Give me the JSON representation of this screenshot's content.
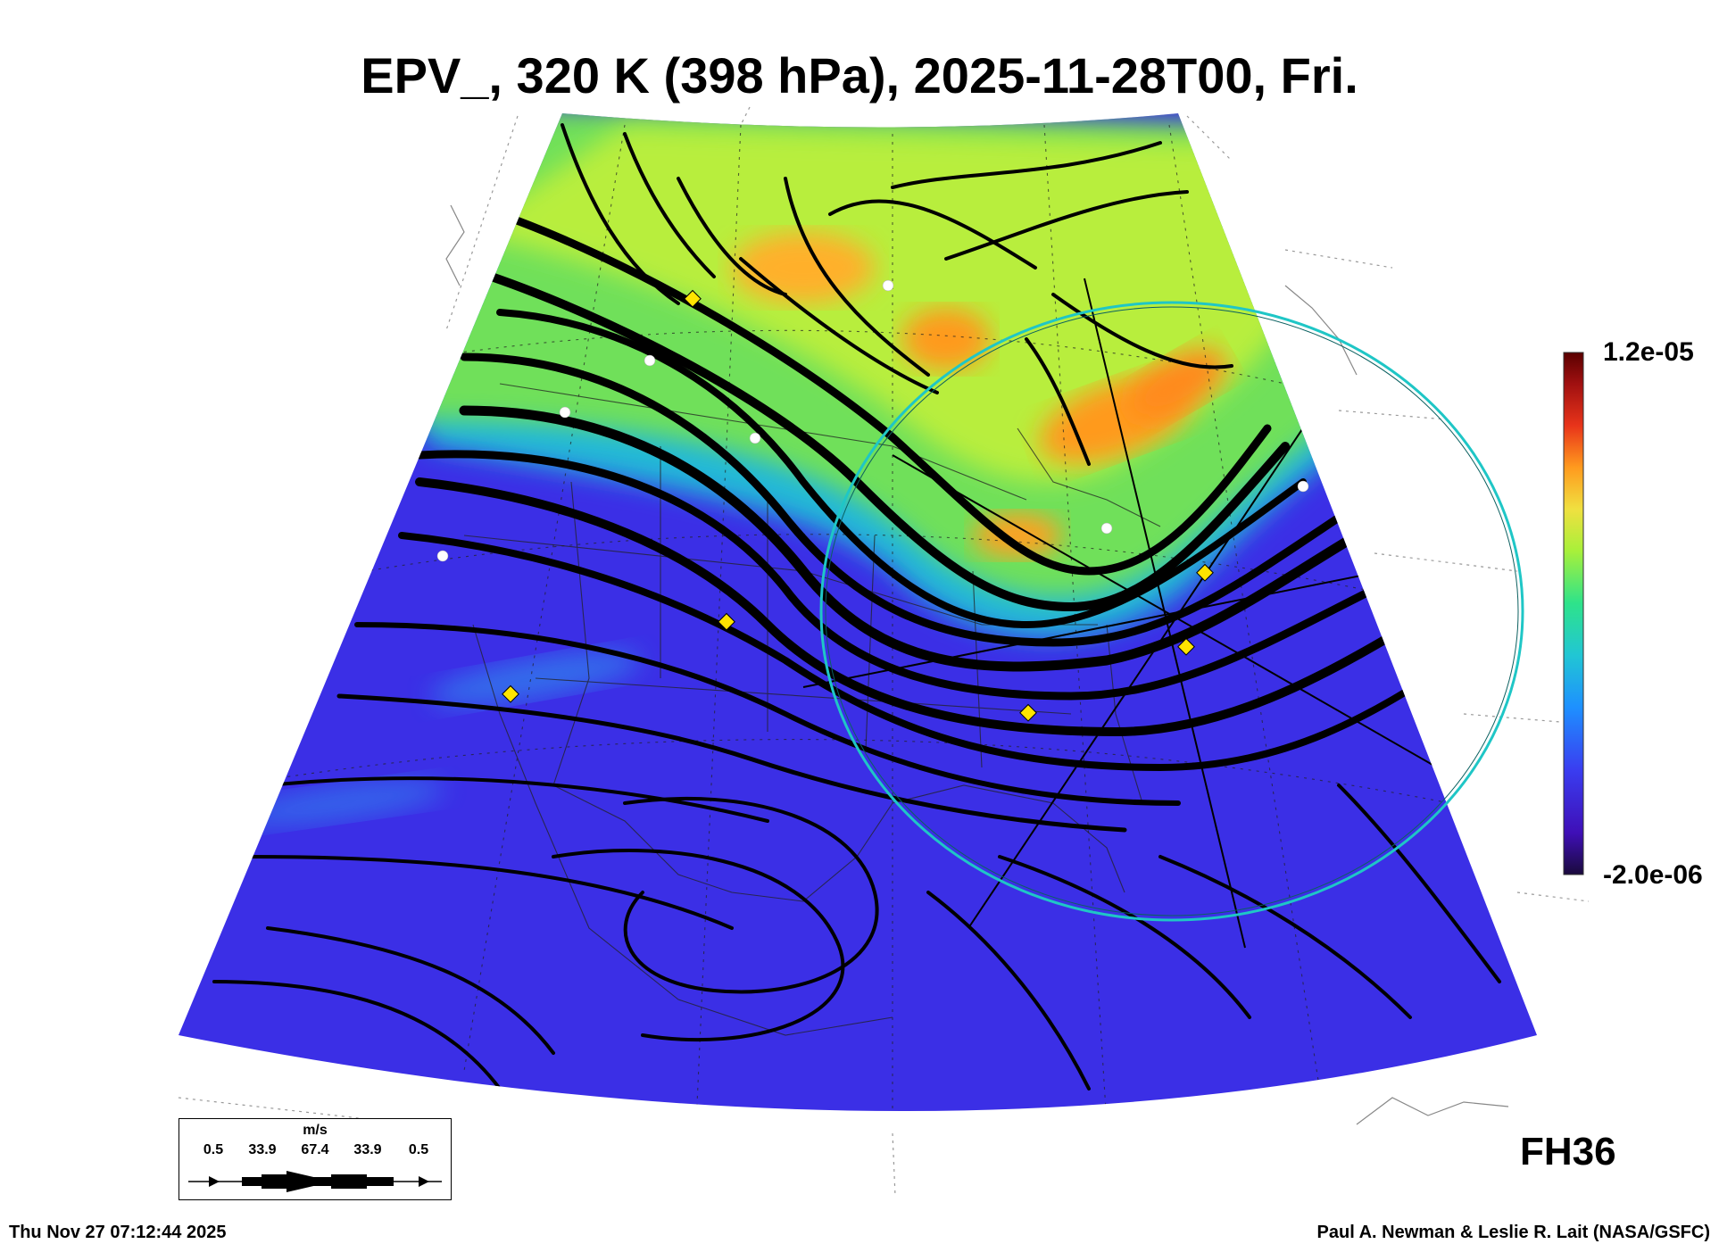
{
  "title": "EPV_, 320 K (398 hPa), 2025-11-28T00, Fri.",
  "colorbar": {
    "max_label": "1.2e-05",
    "min_label": "-2.0e-06",
    "colors": [
      "#1a0a3c",
      "#3f0fb7",
      "#3a3df0",
      "#1e90ff",
      "#21c6d4",
      "#2ee38a",
      "#a8f03a",
      "#f0e040",
      "#ff9a1e",
      "#e8341a",
      "#a01010",
      "#5a0000"
    ]
  },
  "forecast_hour": "FH36",
  "timestamp": "Thu Nov 27 07:12:44 2025",
  "credit": "Paul A. Newman & Leslie R. Lait (NASA/GSFC)",
  "wind_legend": {
    "unit": "m/s",
    "values": [
      "0.5",
      "33.9",
      "67.4",
      "33.9",
      "0.5"
    ]
  },
  "field_colors": {
    "low_pv": "#3b2fe6",
    "mid_pv": "#20b8d8",
    "high_pv": "#8ff04a",
    "max_pv": "#ff9a1e"
  }
}
